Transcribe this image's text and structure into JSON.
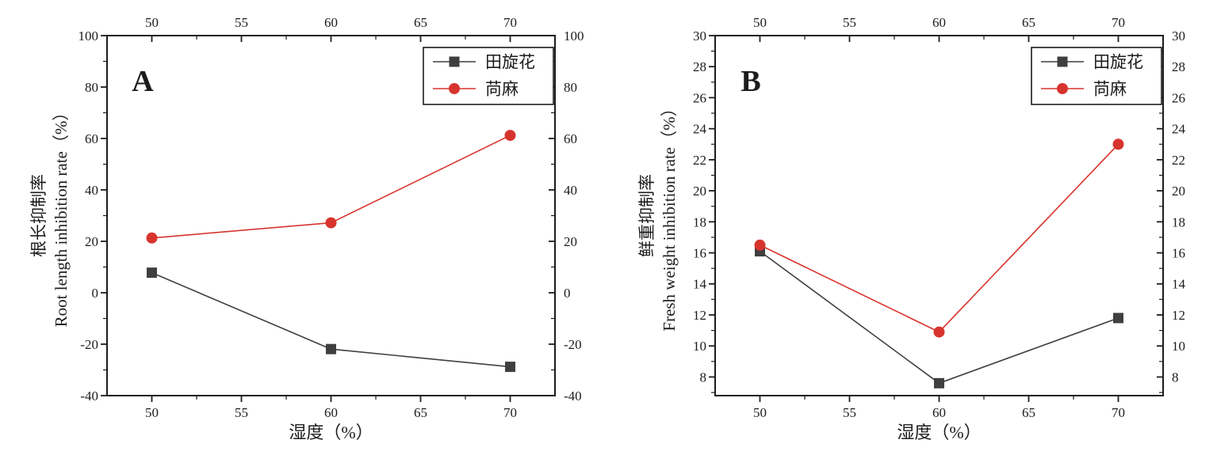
{
  "figure": {
    "background": "#ffffff",
    "axis_color": "#1c1c1c",
    "text_color": "#1c1c1c"
  },
  "chart_data": [
    {
      "type": "line",
      "panel_label": "A",
      "x": [
        50,
        60,
        70
      ],
      "series": [
        {
          "name": "田旋花",
          "marker": "square",
          "color": "#3f3f3f",
          "values": [
            7.8,
            -21.9,
            -28.8
          ]
        },
        {
          "name": "苘麻",
          "marker": "circle",
          "color": "#d8342e",
          "values": [
            21.3,
            27.2,
            61.2
          ]
        }
      ],
      "xlabel": "湿度（%）",
      "ylabel_zh": "根长抑制率",
      "ylabel_en": "Root length inhibition rate（%）",
      "xlim": [
        47.5,
        72.5
      ],
      "ylim": [
        -40,
        100
      ],
      "xticks": [
        50,
        55,
        60,
        65,
        70
      ],
      "yticks": [
        -40,
        -20,
        0,
        20,
        40,
        60,
        80,
        100
      ],
      "x_minor_step": 2.5,
      "y_minor_step": 10,
      "grid": false,
      "legend_position": "top-right",
      "tick_label_sides": [
        "left",
        "right",
        "top",
        "bottom"
      ]
    },
    {
      "type": "line",
      "panel_label": "B",
      "x": [
        50,
        60,
        70
      ],
      "series": [
        {
          "name": "田旋花",
          "marker": "square",
          "color": "#3f3f3f",
          "values": [
            16.1,
            7.6,
            11.8
          ]
        },
        {
          "name": "苘麻",
          "marker": "circle",
          "color": "#d8342e",
          "values": [
            16.5,
            10.9,
            23.0
          ]
        }
      ],
      "xlabel": "湿度（%）",
      "ylabel_zh": "鲜重抑制率",
      "ylabel_en": "Fresh weight inhibition rate（%）",
      "xlim": [
        47.5,
        72.5
      ],
      "ylim": [
        6.8,
        30
      ],
      "xticks": [
        50,
        55,
        60,
        65,
        70
      ],
      "yticks": [
        8,
        10,
        12,
        14,
        16,
        18,
        20,
        22,
        24,
        26,
        28,
        30
      ],
      "x_minor_step": 2.5,
      "y_minor_step": 1,
      "grid": false,
      "legend_position": "top-right",
      "tick_label_sides": [
        "left",
        "right",
        "top",
        "bottom"
      ]
    }
  ]
}
